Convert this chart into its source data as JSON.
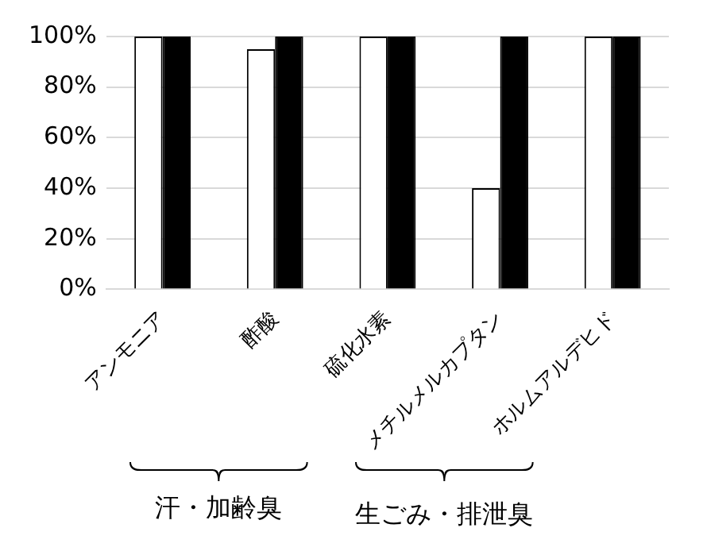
{
  "chart_data": {
    "type": "bar",
    "categories": [
      "アンモニア",
      "酢酸",
      "硫化水素",
      "メチルメルカプタン",
      "ホルムアルデヒド"
    ],
    "series": [
      {
        "color": "#ffffff",
        "values": [
          100,
          95,
          100,
          40,
          100
        ]
      },
      {
        "color": "#000000",
        "values": [
          100,
          100,
          100,
          100,
          100
        ]
      }
    ],
    "ylim": [
      0,
      100
    ],
    "yticks": [
      {
        "value": 0,
        "label": "0%"
      },
      {
        "value": 20,
        "label": "20%"
      },
      {
        "value": 40,
        "label": "40%"
      },
      {
        "value": 60,
        "label": "60%"
      },
      {
        "value": 80,
        "label": "80%"
      },
      {
        "value": 100,
        "label": "100%"
      }
    ],
    "grid": "y",
    "legend": false,
    "annotations": [
      "汗・加齢臭",
      "生ごみ・排泄臭"
    ]
  }
}
